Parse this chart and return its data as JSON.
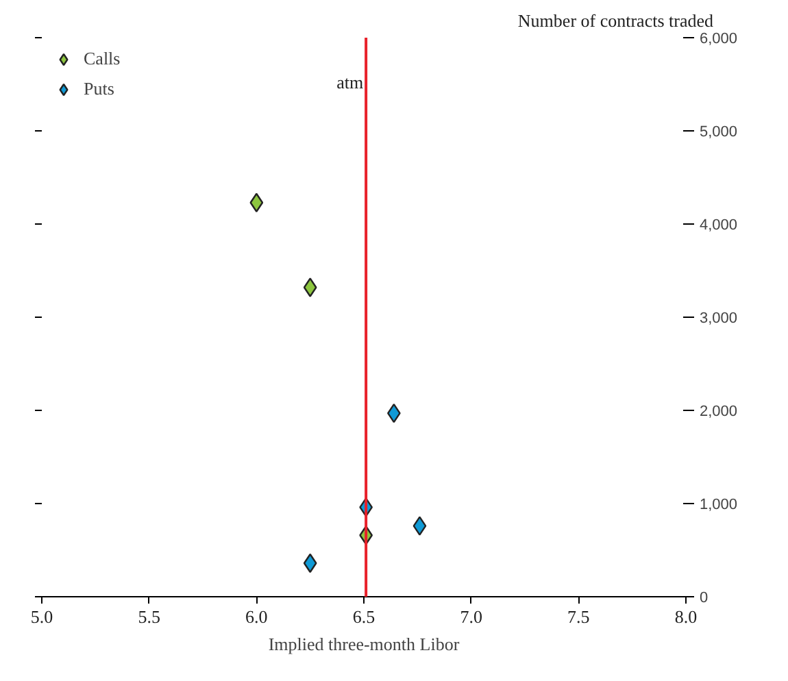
{
  "chart_data": {
    "type": "scatter",
    "xlabel": "Implied three-month Libor",
    "ylabel": "Number of contracts traded",
    "series": [
      {
        "name": "Calls",
        "color": "#8dc63f",
        "x": [
          6.0,
          6.25,
          6.51
        ],
        "values": [
          4230,
          3320,
          660
        ]
      },
      {
        "name": "Puts",
        "color": "#0f9ad6",
        "x": [
          6.25,
          6.51,
          6.64,
          6.76
        ],
        "values": [
          360,
          960,
          1970,
          760
        ]
      }
    ],
    "xlim": [
      5.0,
      8.0
    ],
    "xticks": [
      {
        "value": 5.0,
        "label": "5.0"
      },
      {
        "value": 5.5,
        "label": "5.5"
      },
      {
        "value": 6.0,
        "label": "6.0"
      },
      {
        "value": 6.5,
        "label": "6.5"
      },
      {
        "value": 7.0,
        "label": "7.0"
      },
      {
        "value": 7.5,
        "label": "7.5"
      },
      {
        "value": 8.0,
        "label": "8.0"
      }
    ],
    "ylim": [
      0,
      6000
    ],
    "yticks": [
      0,
      {
        "value": 1000,
        "label": "1,000"
      },
      {
        "value": 2000,
        "label": "2,000"
      },
      {
        "value": 3000,
        "label": "3,000"
      },
      {
        "value": 4000,
        "label": "4,000"
      },
      {
        "value": 5000,
        "label": "5,000"
      },
      {
        "value": 6000,
        "label": "6,000"
      }
    ],
    "ref_lines": [
      {
        "axis": "x",
        "value": 6.51,
        "label": "atm",
        "color": "#e8202a"
      }
    ],
    "marker": "diamond",
    "grid": false,
    "legend": "top left"
  }
}
